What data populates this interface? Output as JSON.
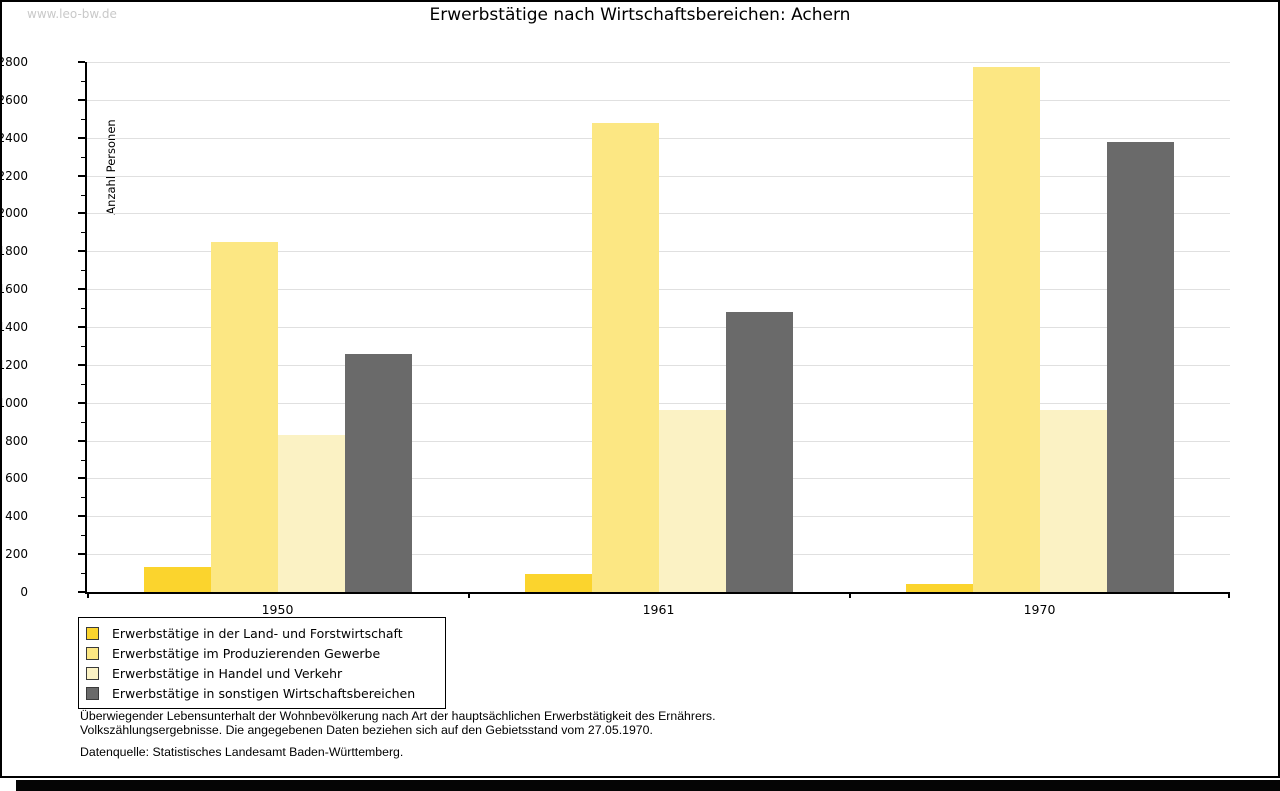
{
  "watermark": "www.leo-bw.de",
  "title": "Erwerbstätige nach Wirtschaftsbereichen: Achern",
  "chart_data": {
    "type": "bar",
    "title": "Erwerbstätige nach Wirtschaftsbereichen: Achern",
    "xlabel": "",
    "ylabel": "Anzahl Personen",
    "ylim": [
      0,
      2800
    ],
    "ytick_step": 200,
    "ytick_minor_step": 100,
    "grid": "horizontal-major",
    "legend_position": "bottom-left",
    "categories": [
      "1950",
      "1961",
      "1970"
    ],
    "series": [
      {
        "name": "Erwerbstätige in der Land- und Forstwirtschaft",
        "color": "#fbd42d",
        "values": [
          130,
          95,
          40
        ]
      },
      {
        "name": "Erwerbstätige im Produzierenden Gewerbe",
        "color": "#fce783",
        "values": [
          1850,
          2480,
          2775
        ]
      },
      {
        "name": "Erwerbstätige in Handel und Verkehr",
        "color": "#fbf2c4",
        "values": [
          830,
          960,
          960
        ]
      },
      {
        "name": "Erwerbstätige in sonstigen Wirtschaftsbereichen",
        "color": "#6a6a6a",
        "values": [
          1260,
          1480,
          2375
        ]
      }
    ]
  },
  "footnotes": {
    "line1": "Überwiegender Lebensunterhalt der Wohnbevölkerung nach Art der hauptsächlichen Erwerbstätigkeit des Ernährers.",
    "line2": "Volkszählungsergebnisse. Die angegebenen Daten beziehen sich auf den Gebietsstand vom 27.05.1970.",
    "source": "Datenquelle: Statistisches Landesamt Baden-Württemberg."
  }
}
